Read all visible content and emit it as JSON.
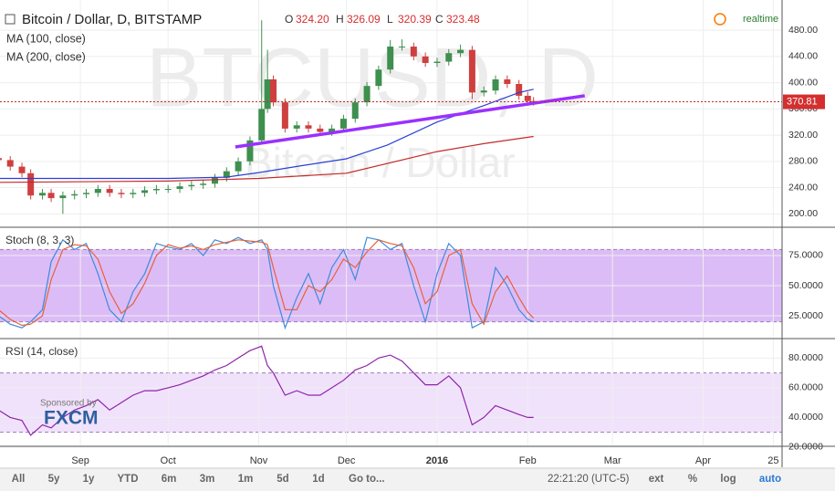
{
  "chart_data": [
    {
      "type": "candlestick",
      "title": "Bitcoin / Dollar, D, BITSTAMP",
      "watermark": "BTCUSD, D",
      "watermark_subtitle": "Bitcoin / Dollar",
      "ohlc": [
        {
          "name": "O",
          "value": "324.20"
        },
        {
          "name": "H",
          "value": "326.09"
        },
        {
          "name": "L",
          "value": "320.39"
        },
        {
          "name": "C",
          "value": "323.48"
        }
      ],
      "status": "realtime",
      "x": [
        -28,
        -24,
        -20,
        -17,
        -13,
        -10,
        -6,
        -2,
        2,
        6,
        10,
        14,
        18,
        22,
        26,
        30,
        34,
        38,
        42,
        46,
        50,
        54,
        58,
        62,
        64,
        66,
        70,
        74,
        78,
        82,
        86,
        90,
        94,
        98,
        102,
        106,
        110,
        114,
        118,
        122,
        126,
        130,
        134,
        138,
        142,
        146,
        150,
        153,
        155
      ],
      "open": [
        285,
        282,
        272,
        262,
        228,
        232,
        224,
        228,
        230,
        232,
        238,
        232,
        230,
        232,
        236,
        238,
        238,
        242,
        244,
        246,
        255,
        265,
        280,
        312,
        360,
        405,
        370,
        330,
        335,
        330,
        325,
        330,
        345,
        370,
        395,
        420,
        455,
        455,
        440,
        430,
        432,
        445,
        450,
        385,
        388,
        405,
        398,
        380,
        372
      ],
      "high": [
        291,
        288,
        278,
        268,
        238,
        238,
        234,
        236,
        238,
        244,
        244,
        238,
        238,
        242,
        244,
        244,
        248,
        250,
        252,
        261,
        271,
        286,
        318,
        495,
        450,
        411,
        376,
        341,
        341,
        336,
        336,
        351,
        376,
        401,
        426,
        465,
        466,
        461,
        446,
        438,
        451,
        458,
        456,
        394,
        411,
        411,
        404,
        386,
        378
      ],
      "low": [
        276,
        266,
        256,
        222,
        222,
        218,
        200,
        222,
        224,
        226,
        226,
        224,
        224,
        226,
        230,
        232,
        232,
        236,
        238,
        240,
        249,
        259,
        274,
        306,
        354,
        364,
        324,
        324,
        324,
        319,
        319,
        324,
        339,
        364,
        389,
        414,
        449,
        434,
        424,
        424,
        426,
        439,
        375,
        379,
        382,
        392,
        374,
        366,
        365
      ],
      "close": [
        282,
        272,
        262,
        228,
        232,
        224,
        228,
        230,
        232,
        238,
        232,
        230,
        232,
        236,
        238,
        238,
        242,
        244,
        246,
        255,
        265,
        280,
        312,
        360,
        405,
        370,
        330,
        335,
        330,
        325,
        330,
        345,
        370,
        395,
        420,
        455,
        455,
        440,
        430,
        432,
        445,
        450,
        385,
        388,
        405,
        398,
        380,
        372,
        371
      ],
      "up_color": "#3f8f4f",
      "down_color": "#cf3f3f",
      "series": [
        {
          "name": "MA (100, close)",
          "color": "#2b3fd6",
          "x": [
            -28,
            0,
            30,
            50,
            61,
            75,
            91,
            105,
            122,
            138,
            150,
            155
          ],
          "values": [
            254,
            254,
            254,
            256,
            263,
            273,
            284,
            305,
            340,
            365,
            385,
            390
          ]
        },
        {
          "name": "MA (200, close)",
          "color": "#c62828",
          "x": [
            -28,
            30,
            61,
            91,
            122,
            138,
            155
          ],
          "values": [
            248,
            250,
            254,
            262,
            295,
            307,
            318
          ]
        }
      ],
      "trendline": {
        "color": "#9b30ff",
        "x": [
          53,
          172.5
        ],
        "values": [
          302,
          380
        ]
      },
      "last_price": 370.81,
      "xlim": [
        -27.5,
        240
      ],
      "ylim": [
        181,
        526
      ],
      "yticks": [
        {
          "value": 200,
          "label": "200.00"
        },
        {
          "value": 240,
          "label": "240.00"
        },
        {
          "value": 280,
          "label": "280.00"
        },
        {
          "value": 320,
          "label": "320.00"
        },
        {
          "value": 360,
          "label": "360.00"
        },
        {
          "value": 400,
          "label": "400.00"
        },
        {
          "value": 440,
          "label": "440.00"
        },
        {
          "value": 480,
          "label": "480.00"
        }
      ]
    },
    {
      "type": "line",
      "title": "Stoch (8, 3, 3)",
      "x": [
        -28,
        -24,
        -20,
        -17,
        -13,
        -10,
        -6,
        -2,
        2,
        6,
        10,
        14,
        18,
        22,
        26,
        30,
        34,
        38,
        42,
        46,
        50,
        54,
        58,
        62,
        64,
        66,
        70,
        74,
        78,
        82,
        86,
        90,
        94,
        98,
        102,
        106,
        110,
        114,
        118,
        122,
        126,
        130,
        134,
        138,
        142,
        146,
        150,
        153,
        155
      ],
      "series": [
        {
          "color": "#3d8bd9",
          "values": [
            25,
            18,
            15,
            20,
            30,
            70,
            88,
            80,
            85,
            60,
            30,
            20,
            45,
            60,
            85,
            82,
            80,
            85,
            75,
            88,
            85,
            90,
            85,
            88,
            80,
            50,
            15,
            40,
            60,
            35,
            65,
            80,
            55,
            90,
            88,
            80,
            85,
            50,
            20,
            60,
            85,
            75,
            15,
            20,
            65,
            50,
            30,
            22,
            20
          ]
        },
        {
          "color": "#e8613a",
          "values": [
            30,
            22,
            17,
            18,
            25,
            55,
            80,
            84,
            83,
            72,
            45,
            27,
            35,
            52,
            75,
            84,
            81,
            83,
            80,
            84,
            86,
            88,
            87,
            86,
            84,
            65,
            30,
            30,
            50,
            45,
            55,
            72,
            65,
            78,
            88,
            85,
            83,
            65,
            35,
            45,
            75,
            80,
            35,
            18,
            45,
            58,
            40,
            28,
            23
          ]
        }
      ],
      "band": [
        20,
        80
      ],
      "band_color": "#dcbcf7",
      "xlim": [
        -27.5,
        240
      ],
      "ylim": [
        6.8,
        97.7
      ],
      "yticks": [
        {
          "value": 25,
          "label": "25.0000"
        },
        {
          "value": 50,
          "label": "50.0000"
        },
        {
          "value": 75,
          "label": "75.0000"
        }
      ]
    },
    {
      "type": "line",
      "title": "RSI (14, close)",
      "x": [
        -28,
        -24,
        -20,
        -17,
        -13,
        -10,
        -6,
        -2,
        2,
        6,
        10,
        14,
        18,
        22,
        26,
        30,
        34,
        38,
        42,
        46,
        50,
        54,
        58,
        62,
        64,
        66,
        70,
        74,
        78,
        82,
        86,
        90,
        94,
        98,
        102,
        106,
        110,
        114,
        118,
        122,
        126,
        130,
        134,
        138,
        142,
        146,
        150,
        153,
        155
      ],
      "series": [
        {
          "color": "#8e24aa",
          "values": [
            45,
            40,
            38,
            28,
            35,
            33,
            40,
            45,
            48,
            52,
            45,
            50,
            55,
            58,
            58,
            60,
            62,
            65,
            68,
            72,
            75,
            80,
            85,
            88,
            75,
            70,
            55,
            58,
            55,
            55,
            60,
            65,
            72,
            75,
            80,
            82,
            78,
            70,
            62,
            62,
            68,
            60,
            35,
            40,
            48,
            45,
            42,
            40,
            40
          ]
        }
      ],
      "band": [
        30,
        70
      ],
      "band_color": "#f1e2fc",
      "xlim": [
        -27.5,
        240
      ],
      "ylim": [
        21.2,
        92.5
      ],
      "yticks": [
        {
          "value": 20,
          "label": "20.0000"
        },
        {
          "value": 40,
          "label": "40.0000"
        },
        {
          "value": 60,
          "label": "60.0000"
        },
        {
          "value": 80,
          "label": "80.0000"
        }
      ],
      "xticks": [
        {
          "value": 0,
          "label": "Sep"
        },
        {
          "value": 30,
          "label": "Oct"
        },
        {
          "value": 61,
          "label": "Nov"
        },
        {
          "value": 91,
          "label": "Dec"
        },
        {
          "value": 122,
          "label": "2016"
        },
        {
          "value": 153,
          "label": "Feb"
        },
        {
          "value": 182,
          "label": "Mar"
        },
        {
          "value": 213,
          "label": "Apr"
        },
        {
          "value": 237,
          "label": "25"
        }
      ]
    }
  ],
  "sponsor": {
    "text": "Sponsored by",
    "brand": "FXCM"
  },
  "toolbar": {
    "ranges": [
      "All",
      "5y",
      "1y",
      "YTD",
      "6m",
      "3m",
      "1m",
      "5d",
      "1d"
    ],
    "goto": "Go to...",
    "time": "22:21:20 (UTC-5)",
    "options": [
      "ext",
      "%",
      "log",
      "auto"
    ]
  }
}
